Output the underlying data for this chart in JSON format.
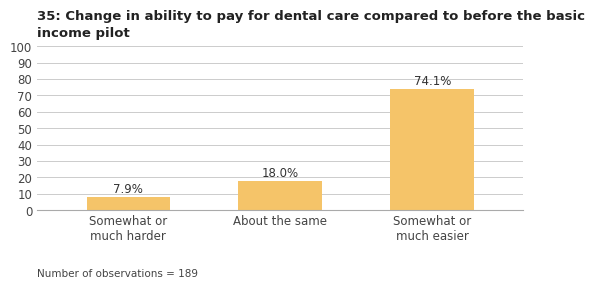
{
  "title": "35: Change in ability to pay for dental care compared to before the basic\nincome pilot",
  "categories": [
    "Somewhat or\nmuch harder",
    "About the same",
    "Somewhat or\nmuch easier"
  ],
  "values": [
    7.9,
    18.0,
    74.1
  ],
  "bar_color": "#F5C469",
  "ylim": [
    0,
    100
  ],
  "yticks": [
    0,
    10,
    20,
    30,
    40,
    50,
    60,
    70,
    80,
    90,
    100
  ],
  "footnote": "Number of observations = 189",
  "label_fontsize": 8.5,
  "title_fontsize": 9.5,
  "tick_fontsize": 8.5,
  "footnote_fontsize": 7.5,
  "background_color": "#ffffff",
  "grid_color": "#cccccc",
  "bar_width": 0.55
}
